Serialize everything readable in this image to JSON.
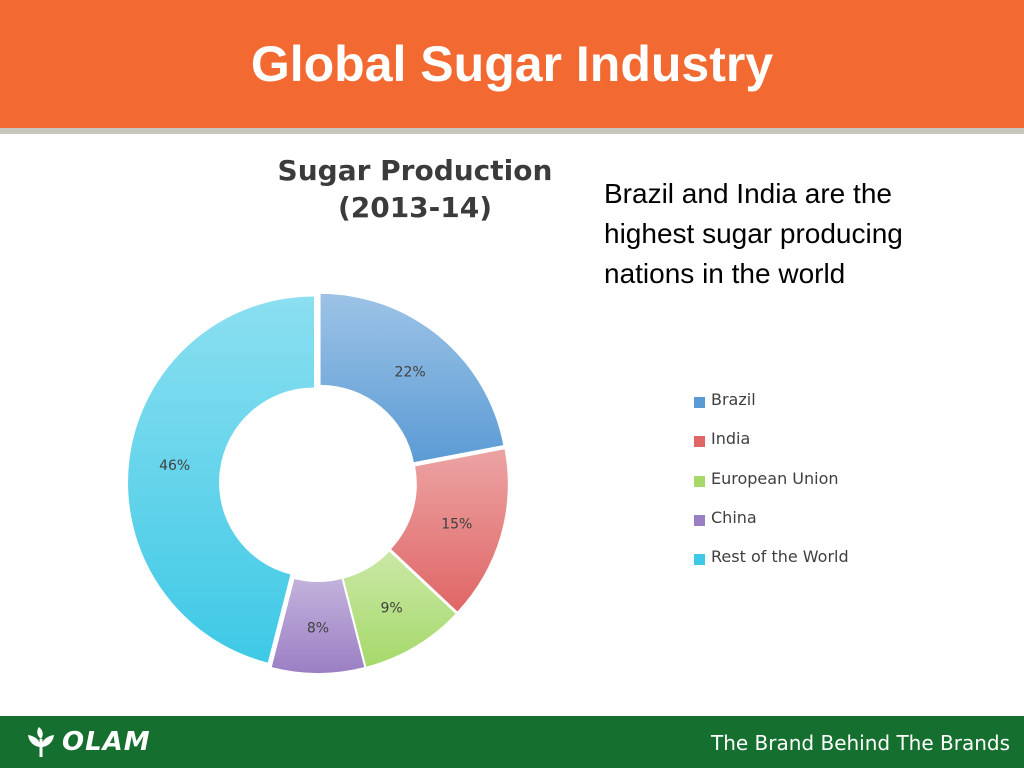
{
  "slide": {
    "title": "Global Sugar Industry",
    "body_text_lines": [
      "Brazil and India are the",
      "highest sugar producing",
      "nations in the world"
    ]
  },
  "chart_data": {
    "type": "pie",
    "style": "exploded doughnut",
    "title_lines": [
      "Sugar Production",
      "(2013-14)"
    ],
    "categories": [
      "Brazil",
      "India",
      "European Union",
      "China",
      "Rest of the World"
    ],
    "values": [
      22,
      15,
      9,
      8,
      46
    ],
    "data_labels": [
      "22%",
      "15%",
      "9%",
      "8%",
      "46%"
    ],
    "colors": [
      "#5b9bd5",
      "#e06666",
      "#a6d96a",
      "#9b7fc4",
      "#3ec9e6"
    ],
    "legend_position": "right"
  },
  "footer": {
    "logo_text": "OLAM",
    "tagline": "The Brand Behind The Brands"
  },
  "icons": {
    "logo": "olam-leaf-icon"
  }
}
